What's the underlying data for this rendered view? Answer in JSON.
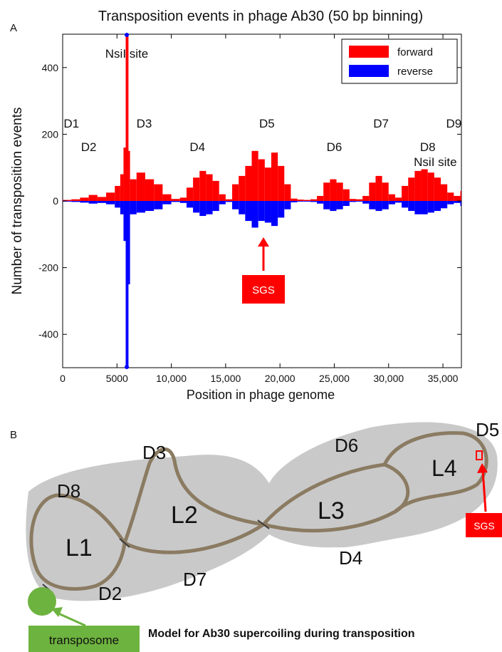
{
  "panel_a": {
    "letter": "A",
    "chart_data": {
      "type": "bar",
      "title": "Transposition events in phage Ab30 (50 bp binning)",
      "xlabel": "Position in phage genome",
      "ylabel": "Number of transposition events",
      "xlim": [
        0,
        36700
      ],
      "ylim": [
        -500,
        500
      ],
      "x_ticks": [
        0,
        5000,
        10000,
        15000,
        20000,
        25000,
        30000,
        35000
      ],
      "x_tick_labels": [
        "0",
        "5000",
        "10,000",
        "15,000",
        "20,000",
        "25,000",
        "30,000",
        "35,000"
      ],
      "y_ticks": [
        -400,
        -200,
        0,
        200,
        400
      ],
      "y_tick_labels": [
        "-400",
        "-200",
        "0",
        "200",
        "400"
      ],
      "legend_position": "top-right",
      "series": [
        {
          "name": "forward",
          "color": "#ff0000",
          "x": [
            0,
            800,
            1600,
            2400,
            3200,
            4000,
            4800,
            5300,
            5600,
            5800,
            5900,
            6200,
            6800,
            7600,
            8400,
            9200,
            10000,
            10800,
            11400,
            12000,
            12600,
            13200,
            13800,
            14400,
            15000,
            15600,
            16200,
            16800,
            17400,
            18000,
            18600,
            19200,
            19800,
            20400,
            21000,
            21600,
            22200,
            22800,
            23400,
            24000,
            24600,
            25200,
            25800,
            26400,
            27000,
            27600,
            28200,
            28800,
            29400,
            30000,
            30600,
            31200,
            31800,
            32400,
            33000,
            33600,
            34200,
            34800,
            35400,
            36000,
            36600
          ],
          "values": [
            3,
            5,
            10,
            18,
            12,
            25,
            45,
            80,
            160,
            500,
            150,
            65,
            85,
            65,
            50,
            20,
            6,
            10,
            40,
            70,
            90,
            80,
            60,
            20,
            5,
            50,
            75,
            105,
            150,
            125,
            100,
            145,
            105,
            50,
            7,
            4,
            3,
            5,
            15,
            55,
            65,
            55,
            35,
            6,
            5,
            15,
            55,
            75,
            55,
            20,
            10,
            45,
            70,
            90,
            95,
            85,
            70,
            50,
            25,
            15,
            30
          ]
        },
        {
          "name": "reverse",
          "color": "#0000ff",
          "x": [
            0,
            800,
            1600,
            2400,
            3200,
            4000,
            4800,
            5300,
            5600,
            5800,
            5900,
            6200,
            6800,
            7600,
            8400,
            9200,
            10000,
            10800,
            11400,
            12000,
            12600,
            13200,
            13800,
            14400,
            15000,
            15600,
            16200,
            16800,
            17400,
            18000,
            18600,
            19200,
            19800,
            20400,
            21000,
            21600,
            22200,
            22800,
            23400,
            24000,
            24600,
            25200,
            25800,
            26400,
            27000,
            27600,
            28200,
            28800,
            29400,
            30000,
            30600,
            31200,
            31800,
            32400,
            33000,
            33600,
            34200,
            34800,
            35400,
            36000,
            36600
          ],
          "values": [
            -2,
            -3,
            -5,
            -8,
            -6,
            -10,
            -20,
            -40,
            -120,
            -500,
            -250,
            -40,
            -35,
            -30,
            -25,
            -10,
            -3,
            -6,
            -20,
            -35,
            -45,
            -40,
            -30,
            -10,
            -3,
            -25,
            -40,
            -60,
            -80,
            -60,
            -65,
            -75,
            -50,
            -25,
            -4,
            -2,
            -2,
            -3,
            -8,
            -25,
            -30,
            -25,
            -15,
            -3,
            -2,
            -8,
            -25,
            -30,
            -25,
            -10,
            -5,
            -20,
            -30,
            -40,
            -40,
            -35,
            -30,
            -22,
            -10,
            -6,
            -15
          ]
        }
      ],
      "annotations": [
        {
          "text": "NsiI site",
          "x": 5900,
          "y": 430
        },
        {
          "text": "D1",
          "x": 800,
          "y": 220
        },
        {
          "text": "D2",
          "x": 2400,
          "y": 150
        },
        {
          "text": "D3",
          "x": 7500,
          "y": 220
        },
        {
          "text": "D4",
          "x": 12400,
          "y": 150
        },
        {
          "text": "D5",
          "x": 18800,
          "y": 220
        },
        {
          "text": "D6",
          "x": 25000,
          "y": 150
        },
        {
          "text": "D7",
          "x": 29300,
          "y": 220
        },
        {
          "text": "D8",
          "x": 33600,
          "y": 150
        },
        {
          "text": "NsiI site",
          "x": 34300,
          "y": 105
        },
        {
          "text": "D9",
          "x": 36000,
          "y": 220
        }
      ],
      "sgs_label": "SGS"
    }
  },
  "panel_b": {
    "letter": "B",
    "loop_labels": [
      "L1",
      "L2",
      "L3",
      "L4"
    ],
    "domain_labels": [
      "D2",
      "D3",
      "D4",
      "D5",
      "D6",
      "D7",
      "D8"
    ],
    "sgs_label": "SGS",
    "transposome_label": "transposome",
    "caption": "Model for Ab30 supercoiling during transposition",
    "colors": {
      "background": "#c9c9c9",
      "rope": "#8a7b62",
      "transposome": "#6db33f",
      "sgs_box": "#ff0000"
    }
  }
}
